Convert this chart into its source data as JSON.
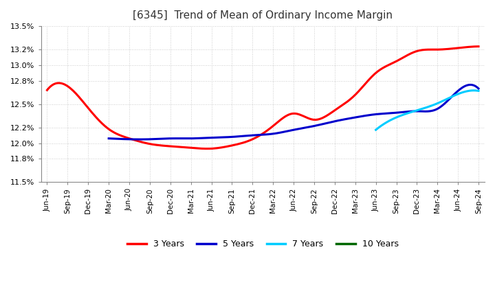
{
  "title": "[6345]  Trend of Mean of Ordinary Income Margin",
  "background_color": "#ffffff",
  "plot_bg_color": "#ffffff",
  "grid_color": "#bbbbbb",
  "title_fontsize": 11,
  "ylim": [
    11.5,
    13.5
  ],
  "series": {
    "3 Years": {
      "color": "#ff0000",
      "data": [
        [
          "Jun-19",
          12.68
        ],
        [
          "Sep-19",
          12.73
        ],
        [
          "Dec-19",
          12.45
        ],
        [
          "Mar-20",
          12.18
        ],
        [
          "Jun-20",
          12.06
        ],
        [
          "Sep-20",
          11.99
        ],
        [
          "Dec-20",
          11.96
        ],
        [
          "Mar-21",
          11.94
        ],
        [
          "Jun-21",
          11.93
        ],
        [
          "Sep-21",
          11.97
        ],
        [
          "Dec-21",
          12.05
        ],
        [
          "Mar-22",
          12.22
        ],
        [
          "Jun-22",
          12.38
        ],
        [
          "Sep-22",
          12.3
        ],
        [
          "Dec-22",
          12.42
        ],
        [
          "Mar-23",
          12.62
        ],
        [
          "Jun-23",
          12.9
        ],
        [
          "Sep-23",
          13.05
        ],
        [
          "Dec-23",
          13.18
        ],
        [
          "Mar-24",
          13.2
        ],
        [
          "Jun-24",
          13.22
        ],
        [
          "Sep-24",
          13.24
        ]
      ]
    },
    "5 Years": {
      "color": "#0000cc",
      "data": [
        [
          "Mar-20",
          12.06
        ],
        [
          "Jun-20",
          12.05
        ],
        [
          "Sep-20",
          12.05
        ],
        [
          "Dec-20",
          12.06
        ],
        [
          "Mar-21",
          12.06
        ],
        [
          "Jun-21",
          12.07
        ],
        [
          "Sep-21",
          12.08
        ],
        [
          "Dec-21",
          12.1
        ],
        [
          "Mar-22",
          12.12
        ],
        [
          "Jun-22",
          12.17
        ],
        [
          "Sep-22",
          12.22
        ],
        [
          "Dec-22",
          12.28
        ],
        [
          "Mar-23",
          12.33
        ],
        [
          "Jun-23",
          12.37
        ],
        [
          "Sep-23",
          12.39
        ],
        [
          "Dec-23",
          12.41
        ],
        [
          "Mar-24",
          12.44
        ],
        [
          "Jun-24",
          12.67
        ],
        [
          "Sep-24",
          12.7
        ]
      ]
    },
    "7 Years": {
      "color": "#00ccff",
      "data": [
        [
          "Jun-23",
          12.17
        ],
        [
          "Sep-23",
          12.33
        ],
        [
          "Dec-23",
          12.42
        ],
        [
          "Mar-24",
          12.51
        ],
        [
          "Jun-24",
          12.63
        ],
        [
          "Sep-24",
          12.67
        ]
      ]
    },
    "10 Years": {
      "color": "#006600",
      "data": []
    }
  },
  "xtick_labels": [
    "Jun-19",
    "Sep-19",
    "Dec-19",
    "Mar-20",
    "Jun-20",
    "Sep-20",
    "Dec-20",
    "Mar-21",
    "Jun-21",
    "Sep-21",
    "Dec-21",
    "Mar-22",
    "Jun-22",
    "Sep-22",
    "Dec-22",
    "Mar-23",
    "Jun-23",
    "Sep-23",
    "Dec-23",
    "Mar-24",
    "Jun-24",
    "Sep-24"
  ],
  "yticks": [
    11.5,
    11.8,
    12.0,
    12.2,
    12.5,
    12.8,
    13.0,
    13.2,
    13.5
  ],
  "ytick_labels": [
    "11.5%",
    "11.8%",
    "12.0%",
    "12.2%",
    "12.5%",
    "12.8%",
    "13.0%",
    "13.2%",
    "13.5%"
  ],
  "legend_entries": [
    "3 Years",
    "5 Years",
    "7 Years",
    "10 Years"
  ],
  "legend_colors": [
    "#ff0000",
    "#0000cc",
    "#00ccff",
    "#006600"
  ]
}
